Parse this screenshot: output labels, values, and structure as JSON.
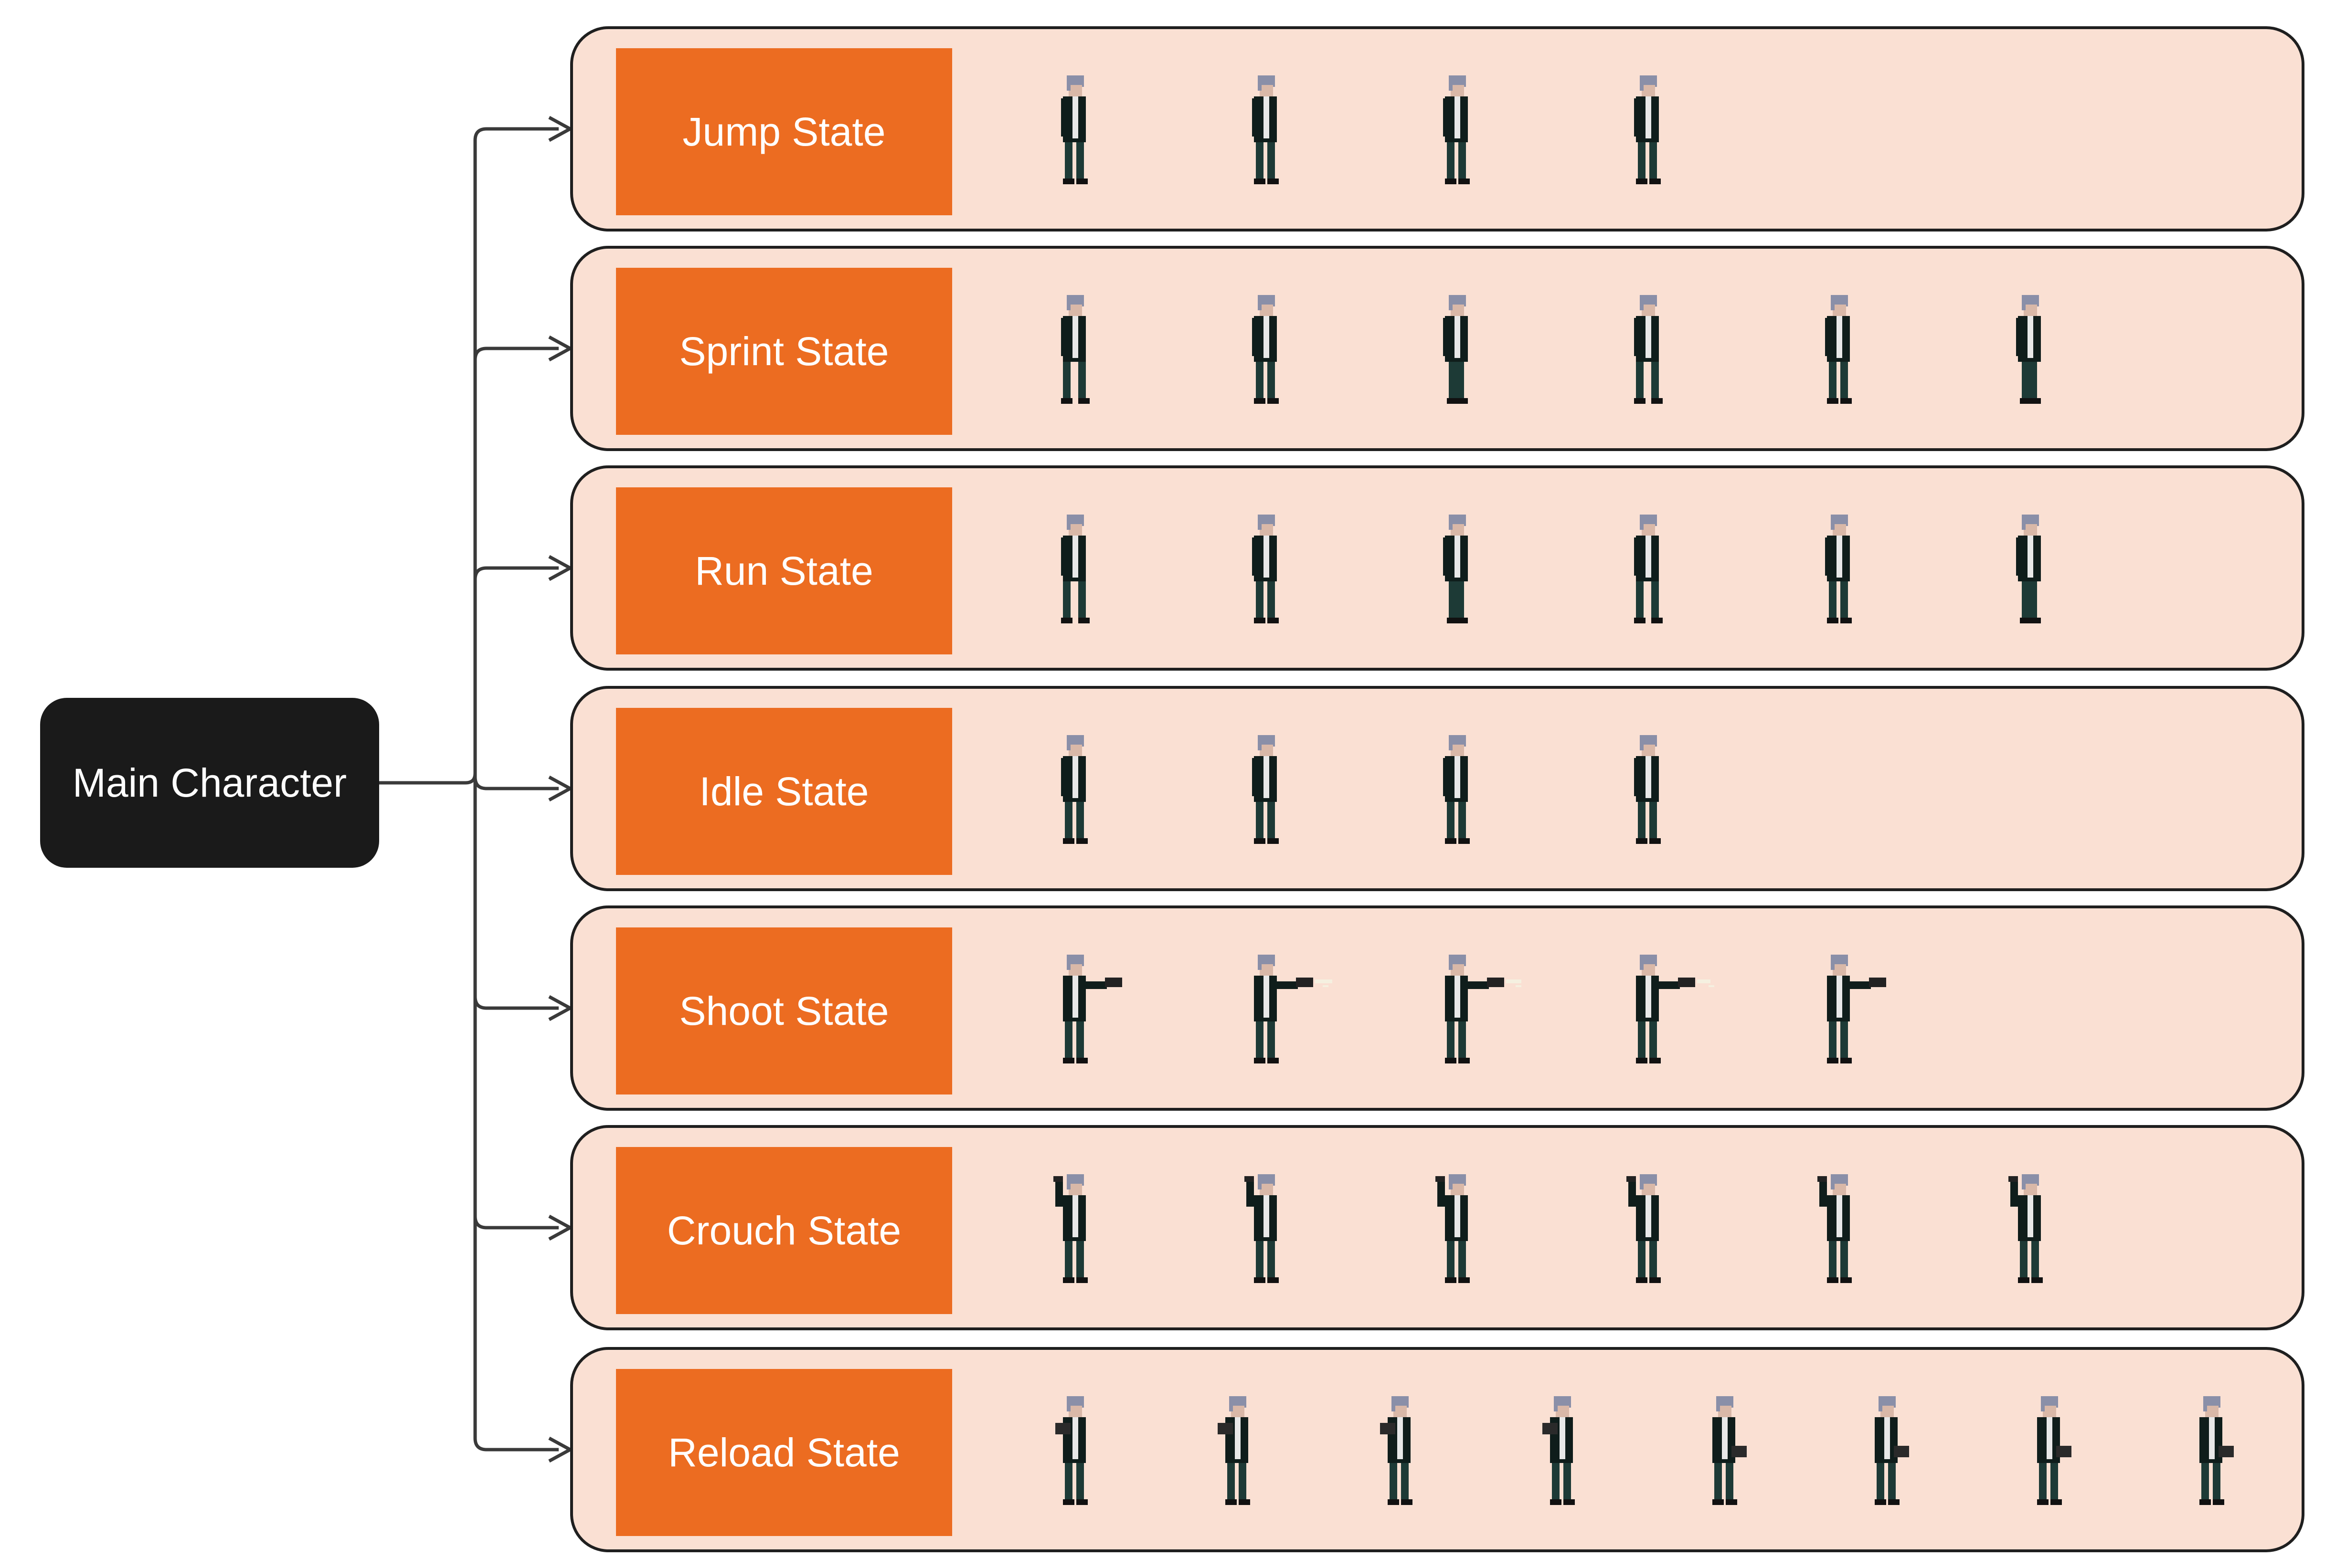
{
  "root": {
    "label": "Main Character"
  },
  "colors": {
    "root_fill": "#1a1a1a",
    "row_fill": "#fae0d3",
    "label_fill": "#ec6c21",
    "connector": "#3a3a3a"
  },
  "states": [
    {
      "label": "Jump State",
      "frames": 4,
      "pose": "idle"
    },
    {
      "label": "Sprint State",
      "frames": 6,
      "pose": "run"
    },
    {
      "label": "Run State",
      "frames": 6,
      "pose": "run"
    },
    {
      "label": "Idle State",
      "frames": 4,
      "pose": "idle"
    },
    {
      "label": "Shoot State",
      "frames": 5,
      "pose": "shoot"
    },
    {
      "label": "Crouch State",
      "frames": 6,
      "pose": "wave"
    },
    {
      "label": "Reload State",
      "frames": 8,
      "pose": "reload"
    }
  ]
}
